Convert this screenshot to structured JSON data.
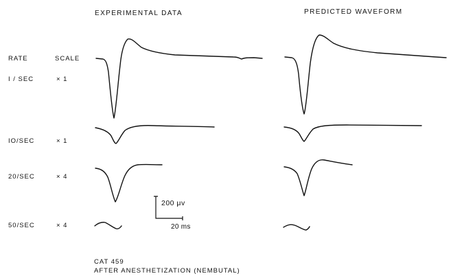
{
  "headers": {
    "experimental": "EXPERIMENTAL DATA",
    "predicted": "PREDICTED WAVEFORM"
  },
  "column_headers": {
    "rate": "RATE",
    "scale": "SCALE"
  },
  "rows": [
    {
      "rate": "I / SEC",
      "scale": "× 1"
    },
    {
      "rate": "IO/SEC",
      "scale": "× 1"
    },
    {
      "rate": "20/SEC",
      "scale": "× 4"
    },
    {
      "rate": "50/SEC",
      "scale": "× 4"
    }
  ],
  "scale_bar": {
    "voltage": "200 μv",
    "time": "20 ms"
  },
  "caption": {
    "line1": "CAT   459",
    "line2": "AFTER ANESTHETIZATION (NEMBUTAL)"
  }
}
